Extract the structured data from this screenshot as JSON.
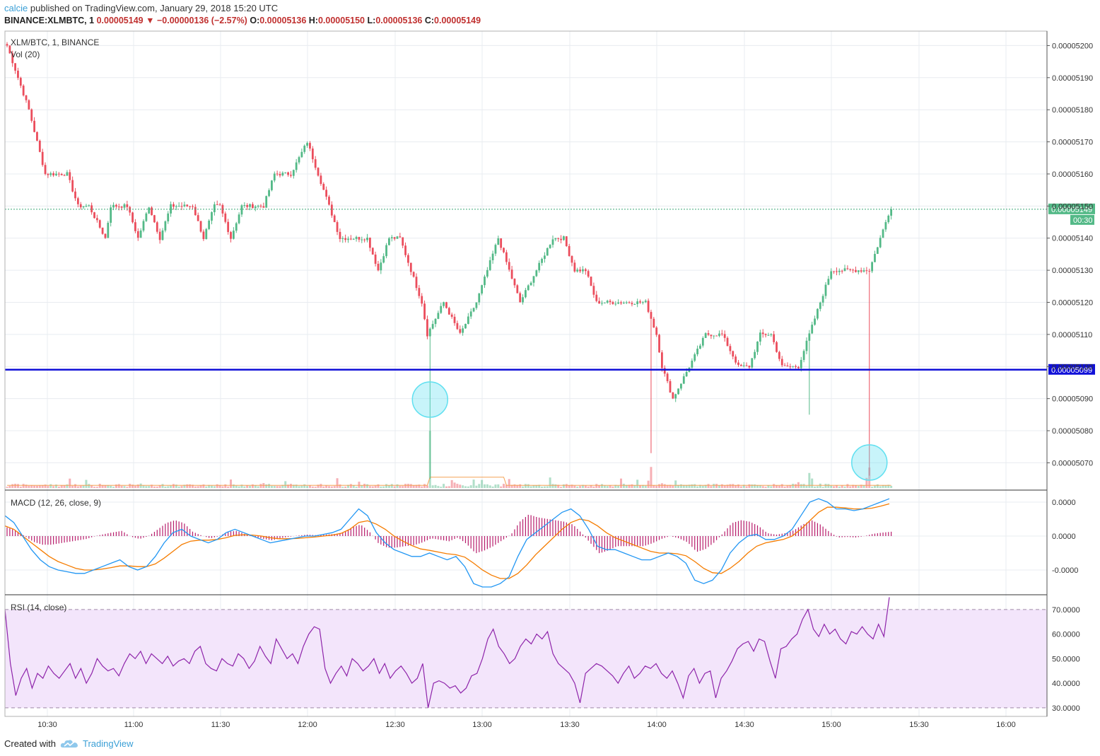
{
  "header": {
    "user": "calcie",
    "published": "published on TradingView.com, January 29, 2018 15:20 UTC",
    "symbol": "BINANCE:XLMBTC, 1",
    "last": "0.00005149",
    "change": "−0.00000136 (−2.57%)",
    "o_label": "O:",
    "o": "0.00005136",
    "h_label": "H:",
    "h": "0.00005150",
    "l_label": "L:",
    "l": "0.00005136",
    "c_label": "C:",
    "c": "0.00005149"
  },
  "panes": {
    "price_title": "XLM/BTC, 1, BINANCE",
    "vol_title": "Vol (20)",
    "macd_title": "MACD (12, 26, close, 9)",
    "rsi_title": "RSI (14, close)"
  },
  "footer": {
    "created": "Created with",
    "brand": "TradingView"
  },
  "colors": {
    "up": "#53b987",
    "down": "#eb4d5c",
    "support": "#1010d8",
    "macd": "#2196f3",
    "signal": "#f57c00",
    "hist": "#b71c6b",
    "rsi": "#8e24aa",
    "rsi_band": "#f3e5fb",
    "highlight": "#60e0f0"
  },
  "chart_data": [
    {
      "type": "candlestick",
      "title": "XLM/BTC, 1, BINANCE",
      "x_ticks": [
        "10:30",
        "11:00",
        "11:30",
        "12:00",
        "12:30",
        "13:00",
        "13:30",
        "14:00",
        "14:30",
        "15:00",
        "15:30",
        "16:00"
      ],
      "y_ticks": [
        "0.00005070",
        "0.00005080",
        "0.00005090",
        "0.00005100",
        "0.00005110",
        "0.00005120",
        "0.00005130",
        "0.00005140",
        "0.00005150",
        "0.00005160",
        "0.00005170",
        "0.00005180",
        "0.00005190",
        "0.00005200"
      ],
      "ylim": [
        5.0615e-05,
        5.2045e-05
      ],
      "last_price_label": "0.00005149",
      "last_price": 5.149e-05,
      "countdown": "00:30",
      "support_label": "0.00005099",
      "support": 5.099e-05,
      "path_anchors": [
        [
          0,
          5.2e-05
        ],
        [
          8,
          5.18e-05
        ],
        [
          14,
          5.16e-05
        ],
        [
          22,
          5.16e-05
        ],
        [
          26,
          5.15e-05
        ],
        [
          30,
          5.15e-05
        ],
        [
          36,
          5.14e-05
        ],
        [
          38,
          5.15e-05
        ],
        [
          44,
          5.15e-05
        ],
        [
          48,
          5.14e-05
        ],
        [
          52,
          5.15e-05
        ],
        [
          56,
          5.14e-05
        ],
        [
          60,
          5.15e-05
        ],
        [
          64,
          5.15e-05
        ],
        [
          68,
          5.15e-05
        ],
        [
          72,
          5.14e-05
        ],
        [
          76,
          5.15e-05
        ],
        [
          78,
          5.15e-05
        ],
        [
          82,
          5.14e-05
        ],
        [
          86,
          5.15e-05
        ],
        [
          90,
          5.15e-05
        ],
        [
          94,
          5.15e-05
        ],
        [
          98,
          5.16e-05
        ],
        [
          104,
          5.16e-05
        ],
        [
          110,
          5.17e-05
        ],
        [
          114,
          5.16e-05
        ],
        [
          118,
          5.15e-05
        ],
        [
          122,
          5.14e-05
        ],
        [
          126,
          5.14e-05
        ],
        [
          132,
          5.14e-05
        ],
        [
          136,
          5.13e-05
        ],
        [
          140,
          5.14e-05
        ],
        [
          144,
          5.14e-05
        ],
        [
          148,
          5.13e-05
        ],
        [
          152,
          5.12e-05
        ],
        [
          154,
          5.11e-05
        ],
        [
          160,
          5.12e-05
        ],
        [
          166,
          5.11e-05
        ],
        [
          172,
          5.12e-05
        ],
        [
          176,
          5.13e-05
        ],
        [
          180,
          5.14e-05
        ],
        [
          184,
          5.13e-05
        ],
        [
          188,
          5.12e-05
        ],
        [
          194,
          5.13e-05
        ],
        [
          200,
          5.14e-05
        ],
        [
          204,
          5.14e-05
        ],
        [
          208,
          5.13e-05
        ],
        [
          212,
          5.13e-05
        ],
        [
          216,
          5.12e-05
        ],
        [
          222,
          5.12e-05
        ],
        [
          228,
          5.12e-05
        ],
        [
          234,
          5.12e-05
        ],
        [
          238,
          5.11e-05
        ],
        [
          240,
          5.1e-05
        ],
        [
          244,
          5.09e-05
        ],
        [
          250,
          5.1e-05
        ],
        [
          256,
          5.11e-05
        ],
        [
          262,
          5.11e-05
        ],
        [
          268,
          5.1e-05
        ],
        [
          272,
          5.1e-05
        ],
        [
          276,
          5.11e-05
        ],
        [
          280,
          5.11e-05
        ],
        [
          284,
          5.1e-05
        ],
        [
          290,
          5.1e-05
        ],
        [
          294,
          5.11e-05
        ],
        [
          298,
          5.12e-05
        ],
        [
          302,
          5.13e-05
        ],
        [
          306,
          5.13e-05
        ],
        [
          310,
          5.13e-05
        ],
        [
          316,
          5.13e-05
        ],
        [
          320,
          5.14e-05
        ],
        [
          324,
          5.15e-05
        ]
      ],
      "down_wick_events": [
        {
          "candle": 155,
          "low": 5.065e-05,
          "volume": 0.95,
          "highlight": true
        },
        {
          "candle": 236,
          "low": 5.073e-05,
          "volume": 0.35
        },
        {
          "candle": 294,
          "low": 5.085e-05,
          "volume": 0.25
        },
        {
          "candle": 316,
          "low": 5.066e-05,
          "volume": 0.34,
          "highlight": true
        }
      ]
    },
    {
      "type": "bar",
      "title": "Vol (20)",
      "note": "volume bars beneath price with 20-period moving average"
    },
    {
      "type": "line",
      "title": "MACD (12, 26, close, 9)",
      "y_ticks": [
        "0.0000",
        "0.0000",
        "-0.0000"
      ],
      "series": [
        {
          "name": "MACD",
          "values": [
            0.6,
            0.4,
            0.0,
            -0.4,
            -0.7,
            -0.9,
            -1.0,
            -1.05,
            -1.1,
            -1.1,
            -1.0,
            -0.9,
            -0.8,
            -0.7,
            -0.9,
            -1.0,
            -0.9,
            -0.6,
            -0.2,
            0.1,
            0.2,
            0.0,
            -0.1,
            -0.2,
            -0.1,
            0.1,
            0.2,
            0.1,
            0.0,
            -0.1,
            -0.2,
            -0.15,
            -0.1,
            -0.05,
            0.0,
            0.0,
            0.05,
            0.1,
            0.2,
            0.5,
            0.8,
            0.6,
            0.1,
            -0.2,
            -0.4,
            -0.5,
            -0.6,
            -0.6,
            -0.5,
            -0.6,
            -0.7,
            -0.6,
            -0.9,
            -1.4,
            -1.5,
            -1.5,
            -1.4,
            -1.2,
            -0.6,
            -0.1,
            0.1,
            0.3,
            0.5,
            0.7,
            0.8,
            0.6,
            0.2,
            -0.3,
            -0.4,
            -0.4,
            -0.5,
            -0.6,
            -0.7,
            -0.7,
            -0.6,
            -0.5,
            -0.6,
            -0.8,
            -1.3,
            -1.4,
            -1.3,
            -1.0,
            -0.5,
            -0.2,
            0.0,
            0.05,
            -0.1,
            -0.1,
            0.0,
            0.2,
            0.6,
            1.0,
            1.1,
            1.0,
            0.8,
            0.8,
            0.75,
            0.8,
            0.9,
            1.0,
            1.1
          ]
        },
        {
          "name": "Signal",
          "values": [
            0.3,
            0.2,
            0.0,
            -0.2,
            -0.4,
            -0.6,
            -0.75,
            -0.85,
            -0.95,
            -1.0,
            -1.0,
            -0.97,
            -0.93,
            -0.88,
            -0.88,
            -0.9,
            -0.9,
            -0.82,
            -0.65,
            -0.45,
            -0.25,
            -0.15,
            -0.12,
            -0.12,
            -0.1,
            -0.05,
            0.02,
            0.04,
            0.03,
            0.0,
            -0.05,
            -0.08,
            -0.08,
            -0.07,
            -0.05,
            -0.03,
            0.0,
            0.03,
            0.08,
            0.2,
            0.4,
            0.45,
            0.35,
            0.2,
            0.0,
            -0.15,
            -0.28,
            -0.38,
            -0.42,
            -0.47,
            -0.52,
            -0.55,
            -0.62,
            -0.8,
            -1.0,
            -1.15,
            -1.25,
            -1.25,
            -1.1,
            -0.85,
            -0.55,
            -0.3,
            -0.05,
            0.2,
            0.4,
            0.5,
            0.45,
            0.3,
            0.1,
            -0.05,
            -0.15,
            -0.25,
            -0.35,
            -0.45,
            -0.5,
            -0.5,
            -0.52,
            -0.58,
            -0.75,
            -0.95,
            -1.08,
            -1.1,
            -0.95,
            -0.75,
            -0.5,
            -0.3,
            -0.2,
            -0.15,
            -0.1,
            0.0,
            0.2,
            0.45,
            0.7,
            0.85,
            0.85,
            0.83,
            0.8,
            0.8,
            0.82,
            0.88,
            0.95
          ]
        }
      ]
    },
    {
      "type": "line",
      "title": "RSI (14, close)",
      "y_ticks": [
        "30.0000",
        "40.0000",
        "50.0000",
        "60.0000",
        "70.0000"
      ],
      "ylim": [
        26.5,
        76
      ],
      "band": [
        30,
        70
      ],
      "series": [
        {
          "name": "RSI",
          "values": [
            70,
            48,
            35,
            42,
            46,
            38,
            44,
            42,
            47,
            44,
            42,
            45,
            48,
            42,
            46,
            40,
            44,
            50,
            47,
            45,
            46,
            43,
            48,
            52,
            50,
            53,
            48,
            52,
            50,
            48,
            51,
            47,
            49,
            50,
            48,
            53,
            55,
            48,
            46,
            45,
            50,
            48,
            47,
            52,
            50,
            46,
            49,
            55,
            51,
            48,
            58,
            54,
            50,
            52,
            48,
            55,
            60,
            63,
            62,
            46,
            40,
            44,
            47,
            43,
            50,
            48,
            45,
            47,
            50,
            44,
            48,
            42,
            45,
            47,
            44,
            40,
            42,
            48,
            30,
            40,
            41,
            40,
            38,
            39,
            36,
            38,
            43,
            44,
            50,
            58,
            62,
            55,
            52,
            48,
            50,
            55,
            58,
            56,
            60,
            58,
            61,
            52,
            48,
            46,
            44,
            40,
            32,
            44,
            46,
            48,
            47,
            45,
            43,
            40,
            44,
            47,
            42,
            44,
            47,
            46,
            48,
            44,
            42,
            45,
            40,
            34,
            43,
            46,
            40,
            44,
            45,
            34,
            42,
            45,
            49,
            54,
            56,
            57,
            53,
            58,
            57,
            49,
            42,
            54,
            55,
            58,
            60,
            66,
            70,
            62,
            59,
            64,
            60,
            62,
            58,
            56,
            61,
            60,
            63,
            60,
            58,
            64,
            59,
            75
          ]
        }
      ]
    }
  ]
}
